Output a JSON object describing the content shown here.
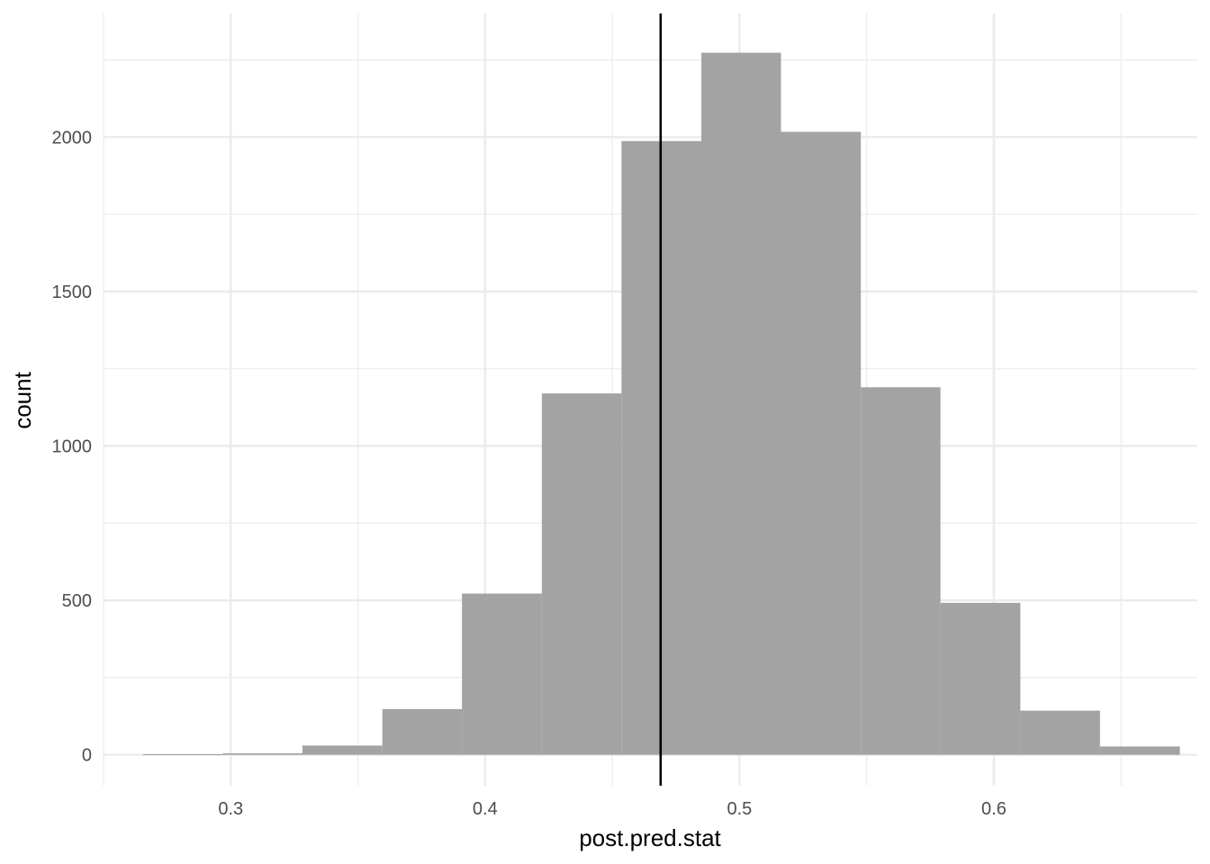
{
  "chart_data": {
    "type": "bar",
    "subtype": "histogram",
    "xlabel": "post.pred.stat",
    "ylabel": "count",
    "xlim": [
      0.25,
      0.68
    ],
    "ylim": [
      -100,
      2400
    ],
    "x_ticks": [
      0.3,
      0.4,
      0.5,
      0.6
    ],
    "x_tick_labels": [
      "0.3",
      "0.4",
      "0.5",
      "0.6"
    ],
    "x_minor_ticks": [
      0.25,
      0.35,
      0.45,
      0.55,
      0.65
    ],
    "y_ticks": [
      0,
      500,
      1000,
      1500,
      2000
    ],
    "y_tick_labels": [
      "0",
      "500",
      "1000",
      "1500",
      "2000"
    ],
    "y_minor_ticks": [
      250,
      750,
      1250,
      1750,
      2250
    ],
    "grid": true,
    "bins": [
      {
        "xmin": 0.2655,
        "xmax": 0.2969,
        "count": 2
      },
      {
        "xmin": 0.2969,
        "xmax": 0.3282,
        "count": 5
      },
      {
        "xmin": 0.3282,
        "xmax": 0.3596,
        "count": 30
      },
      {
        "xmin": 0.3596,
        "xmax": 0.3909,
        "count": 148
      },
      {
        "xmin": 0.3909,
        "xmax": 0.4223,
        "count": 522
      },
      {
        "xmin": 0.4223,
        "xmax": 0.4536,
        "count": 1170
      },
      {
        "xmin": 0.4536,
        "xmax": 0.485,
        "count": 1987
      },
      {
        "xmin": 0.485,
        "xmax": 0.5163,
        "count": 2273
      },
      {
        "xmin": 0.5163,
        "xmax": 0.5477,
        "count": 2017
      },
      {
        "xmin": 0.5477,
        "xmax": 0.579,
        "count": 1190
      },
      {
        "xmin": 0.579,
        "xmax": 0.6104,
        "count": 492
      },
      {
        "xmin": 0.6104,
        "xmax": 0.6417,
        "count": 143
      },
      {
        "xmin": 0.6417,
        "xmax": 0.6731,
        "count": 27
      }
    ],
    "vline": {
      "x": 0.469,
      "color": "#000000"
    },
    "bar_color": "#a3a3a3",
    "grid_color": "#ebebeb"
  }
}
